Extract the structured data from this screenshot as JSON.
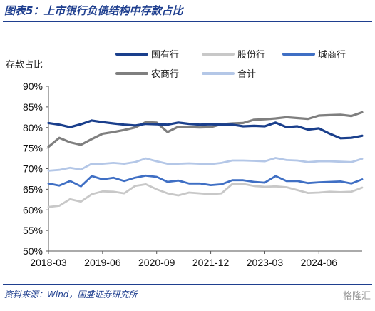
{
  "header": {
    "title": "图表5：上市银行负债结构中存款占比"
  },
  "source_text": "资料来源：Wind，国盛证券研究所",
  "watermark_text": "格隆汇",
  "chart_data": {
    "type": "line",
    "ylabel": "存款占比",
    "ylim": [
      0.5,
      0.9
    ],
    "yticks": [
      0.5,
      0.55,
      0.6,
      0.65,
      0.7,
      0.75,
      0.8,
      0.85,
      0.9
    ],
    "ytick_labels": [
      "50%",
      "55%",
      "60%",
      "65%",
      "70%",
      "75%",
      "80%",
      "85%",
      "90%"
    ],
    "x_labels": [
      "2018-03",
      "2019-06",
      "2020-09",
      "2021-12",
      "2023-03",
      "2024-06"
    ],
    "x_label_index": [
      0,
      5,
      10,
      15,
      20,
      25
    ],
    "grid": false,
    "legend_position": "top",
    "series": [
      {
        "name": "国有行",
        "color": "#1a3f8c",
        "width": 3.2,
        "values": [
          0.811,
          0.807,
          0.801,
          0.808,
          0.817,
          0.813,
          0.81,
          0.807,
          0.805,
          0.809,
          0.808,
          0.807,
          0.812,
          0.809,
          0.807,
          0.808,
          0.807,
          0.807,
          0.803,
          0.804,
          0.803,
          0.812,
          0.801,
          0.803,
          0.795,
          0.798,
          0.785,
          0.774,
          0.775,
          0.78
        ]
      },
      {
        "name": "股份行",
        "color": "#c8c8c8",
        "width": 2.8,
        "values": [
          0.607,
          0.61,
          0.626,
          0.62,
          0.638,
          0.645,
          0.644,
          0.64,
          0.658,
          0.662,
          0.65,
          0.64,
          0.635,
          0.642,
          0.64,
          0.638,
          0.64,
          0.663,
          0.663,
          0.658,
          0.656,
          0.657,
          0.655,
          0.648,
          0.641,
          0.642,
          0.644,
          0.643,
          0.644,
          0.654
        ]
      },
      {
        "name": "城商行",
        "color": "#3f6fc4",
        "width": 2.8,
        "values": [
          0.664,
          0.659,
          0.67,
          0.657,
          0.682,
          0.674,
          0.678,
          0.67,
          0.678,
          0.683,
          0.68,
          0.668,
          0.671,
          0.664,
          0.664,
          0.66,
          0.662,
          0.672,
          0.672,
          0.668,
          0.666,
          0.682,
          0.67,
          0.67,
          0.665,
          0.667,
          0.668,
          0.669,
          0.664,
          0.674
        ]
      },
      {
        "name": "农商行",
        "color": "#7f7f7f",
        "width": 3.2,
        "values": [
          0.753,
          0.775,
          0.764,
          0.758,
          0.772,
          0.785,
          0.789,
          0.794,
          0.8,
          0.813,
          0.812,
          0.789,
          0.802,
          0.801,
          0.8,
          0.801,
          0.808,
          0.81,
          0.811,
          0.819,
          0.82,
          0.822,
          0.825,
          0.823,
          0.821,
          0.829,
          0.83,
          0.831,
          0.828,
          0.837
        ]
      },
      {
        "name": "合计",
        "color": "#b4c7e7",
        "width": 2.8,
        "values": [
          0.695,
          0.697,
          0.702,
          0.698,
          0.712,
          0.712,
          0.714,
          0.712,
          0.716,
          0.725,
          0.718,
          0.712,
          0.712,
          0.713,
          0.712,
          0.711,
          0.714,
          0.72,
          0.72,
          0.719,
          0.718,
          0.726,
          0.721,
          0.72,
          0.716,
          0.718,
          0.718,
          0.717,
          0.716,
          0.724
        ]
      }
    ]
  }
}
